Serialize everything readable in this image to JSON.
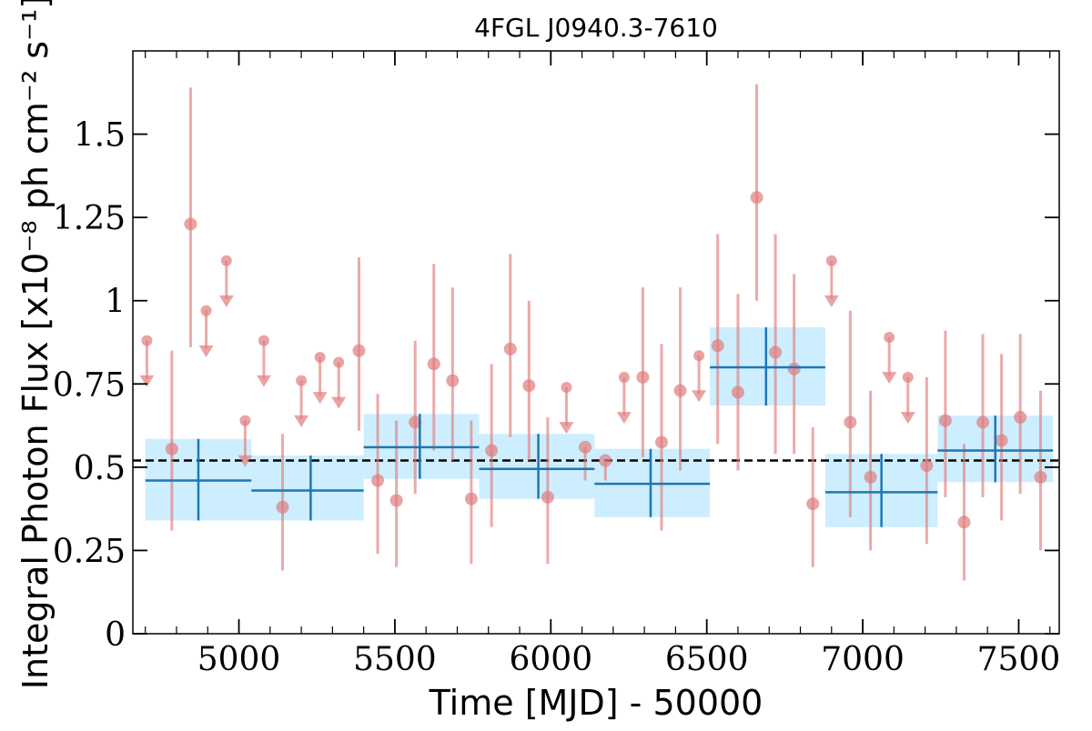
{
  "chart_data": {
    "type": "scatter",
    "title": "4FGL J0940.3-7610",
    "xlabel": "Time [MJD] - 50000",
    "ylabel": "Integral Photon Flux [x10⁻⁸ ph cm⁻² s⁻¹]",
    "xlim": [
      4660,
      7630
    ],
    "ylim": [
      0,
      1.75
    ],
    "x_ticks": [
      5000,
      5500,
      6000,
      6500,
      7000,
      7500
    ],
    "y_ticks": [
      0,
      0.25,
      0.5,
      0.75,
      1,
      1.25,
      1.5
    ],
    "y_tick_labels": [
      "0",
      "0.25",
      "0.5",
      "0.75",
      "1",
      "1.25",
      "1.5"
    ],
    "x_tick_labels": [
      "5000",
      "5500",
      "6000",
      "6500",
      "7000",
      "7500"
    ],
    "reference_line": {
      "y": 0.52,
      "style": "dashed"
    },
    "colors": {
      "points": "#e07c7c",
      "bins": "#1f77b4",
      "band": "#cdeeff",
      "reference": "#000000"
    },
    "series": [
      {
        "kind": "detections",
        "points": [
          {
            "x": 4785,
            "y": 0.555,
            "lo": 0.31,
            "hi": 0.85
          },
          {
            "x": 4845,
            "y": 1.23,
            "lo": 0.86,
            "hi": 1.64
          },
          {
            "x": 5140,
            "y": 0.38,
            "lo": 0.19,
            "hi": 0.6
          },
          {
            "x": 5385,
            "y": 0.85,
            "lo": 0.61,
            "hi": 1.13
          },
          {
            "x": 5445,
            "y": 0.46,
            "lo": 0.24,
            "hi": 0.72
          },
          {
            "x": 5505,
            "y": 0.4,
            "lo": 0.2,
            "hi": 0.64
          },
          {
            "x": 5565,
            "y": 0.635,
            "lo": 0.42,
            "hi": 0.88
          },
          {
            "x": 5625,
            "y": 0.81,
            "lo": 0.55,
            "hi": 1.11
          },
          {
            "x": 5685,
            "y": 0.76,
            "lo": 0.52,
            "hi": 1.04
          },
          {
            "x": 5745,
            "y": 0.405,
            "lo": 0.21,
            "hi": 0.64
          },
          {
            "x": 5810,
            "y": 0.55,
            "lo": 0.32,
            "hi": 0.81
          },
          {
            "x": 5870,
            "y": 0.855,
            "lo": 0.59,
            "hi": 1.14
          },
          {
            "x": 5930,
            "y": 0.745,
            "lo": 0.52,
            "hi": 1.0
          },
          {
            "x": 5990,
            "y": 0.41,
            "lo": 0.21,
            "hi": 0.65
          },
          {
            "x": 6110,
            "y": 0.56,
            "lo": 0.46,
            "hi": 0.56
          },
          {
            "x": 6175,
            "y": 0.52,
            "lo": 0.46,
            "hi": 0.52
          },
          {
            "x": 6295,
            "y": 0.77,
            "lo": 0.53,
            "hi": 1.04
          },
          {
            "x": 6355,
            "y": 0.575,
            "lo": 0.31,
            "hi": 0.87
          },
          {
            "x": 6415,
            "y": 0.73,
            "lo": 0.49,
            "hi": 1.04
          },
          {
            "x": 6535,
            "y": 0.865,
            "lo": 0.57,
            "hi": 1.2
          },
          {
            "x": 6600,
            "y": 0.725,
            "lo": 0.49,
            "hi": 1.02
          },
          {
            "x": 6660,
            "y": 1.31,
            "lo": 1.0,
            "hi": 1.65
          },
          {
            "x": 6720,
            "y": 0.845,
            "lo": 0.54,
            "hi": 1.2
          },
          {
            "x": 6780,
            "y": 0.795,
            "lo": 0.54,
            "hi": 1.08
          },
          {
            "x": 6840,
            "y": 0.39,
            "lo": 0.2,
            "hi": 0.62
          },
          {
            "x": 6960,
            "y": 0.635,
            "lo": 0.35,
            "hi": 0.97
          },
          {
            "x": 7025,
            "y": 0.47,
            "lo": 0.25,
            "hi": 0.73
          },
          {
            "x": 7205,
            "y": 0.505,
            "lo": 0.27,
            "hi": 0.77
          },
          {
            "x": 7265,
            "y": 0.64,
            "lo": 0.41,
            "hi": 0.91
          },
          {
            "x": 7325,
            "y": 0.335,
            "lo": 0.16,
            "hi": 0.57
          },
          {
            "x": 7385,
            "y": 0.635,
            "lo": 0.41,
            "hi": 0.9
          },
          {
            "x": 7445,
            "y": 0.58,
            "lo": 0.34,
            "hi": 0.84
          },
          {
            "x": 7505,
            "y": 0.65,
            "lo": 0.42,
            "hi": 0.9
          },
          {
            "x": 7570,
            "y": 0.47,
            "lo": 0.25,
            "hi": 0.73
          }
        ]
      },
      {
        "kind": "upper_limits",
        "points": [
          {
            "x": 4705,
            "y": 0.88
          },
          {
            "x": 4895,
            "y": 0.97
          },
          {
            "x": 4960,
            "y": 1.12
          },
          {
            "x": 5020,
            "y": 0.64
          },
          {
            "x": 5080,
            "y": 0.88
          },
          {
            "x": 5200,
            "y": 0.76
          },
          {
            "x": 5260,
            "y": 0.83
          },
          {
            "x": 5320,
            "y": 0.815
          },
          {
            "x": 6050,
            "y": 0.74
          },
          {
            "x": 6235,
            "y": 0.77
          },
          {
            "x": 6475,
            "y": 0.835
          },
          {
            "x": 6900,
            "y": 1.12
          },
          {
            "x": 7085,
            "y": 0.89
          },
          {
            "x": 7145,
            "y": 0.77
          }
        ]
      },
      {
        "kind": "binned",
        "bins": [
          {
            "x0": 4700,
            "x1": 5040,
            "x": 4870,
            "y": 0.46,
            "lo": 0.34,
            "hi": 0.585
          },
          {
            "x0": 5040,
            "x1": 5400,
            "x": 5230,
            "y": 0.43,
            "lo": 0.34,
            "hi": 0.535
          },
          {
            "x0": 5400,
            "x1": 5770,
            "x": 5580,
            "y": 0.56,
            "lo": 0.465,
            "hi": 0.66
          },
          {
            "x0": 5770,
            "x1": 6140,
            "x": 5960,
            "y": 0.495,
            "lo": 0.405,
            "hi": 0.6
          },
          {
            "x0": 6140,
            "x1": 6510,
            "x": 6320,
            "y": 0.45,
            "lo": 0.35,
            "hi": 0.555
          },
          {
            "x0": 6510,
            "x1": 6880,
            "x": 6690,
            "y": 0.8,
            "lo": 0.685,
            "hi": 0.92
          },
          {
            "x0": 6880,
            "x1": 7240,
            "x": 7060,
            "y": 0.425,
            "lo": 0.32,
            "hi": 0.54
          },
          {
            "x0": 7240,
            "x1": 7610,
            "x": 7425,
            "y": 0.55,
            "lo": 0.455,
            "hi": 0.655
          }
        ]
      }
    ]
  }
}
